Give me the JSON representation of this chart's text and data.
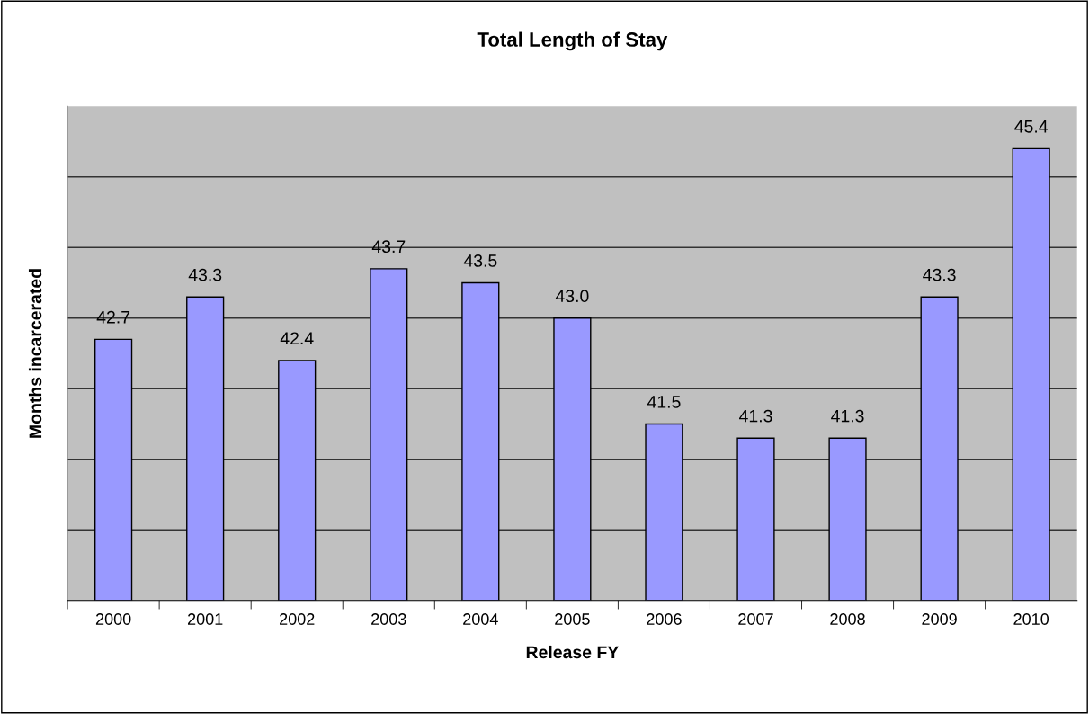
{
  "chart_data": {
    "type": "bar",
    "title": "Total Length of Stay",
    "xlabel": "Release FY",
    "ylabel": "Months incarcerated",
    "categories": [
      "2000",
      "2001",
      "2002",
      "2003",
      "2004",
      "2005",
      "2006",
      "2007",
      "2008",
      "2009",
      "2010"
    ],
    "values": [
      42.7,
      43.3,
      42.4,
      43.7,
      43.5,
      43.0,
      41.5,
      41.3,
      41.3,
      43.3,
      45.4
    ],
    "value_labels": [
      "42.7",
      "43.3",
      "42.4",
      "43.7",
      "43.5",
      "43.0",
      "41.5",
      "41.3",
      "41.3",
      "43.3",
      "45.4"
    ],
    "color": "#9999ff",
    "ylim": [
      39,
      46
    ],
    "yticks": [
      {
        "value": 40,
        "label": null
      },
      {
        "value": 41,
        "label": null
      },
      {
        "value": 42,
        "label": null
      },
      {
        "value": 43,
        "label": null
      },
      {
        "value": 44,
        "label": null
      },
      {
        "value": 45,
        "label": null
      }
    ],
    "tick_labels": "x",
    "grid": "y",
    "legend": false
  }
}
